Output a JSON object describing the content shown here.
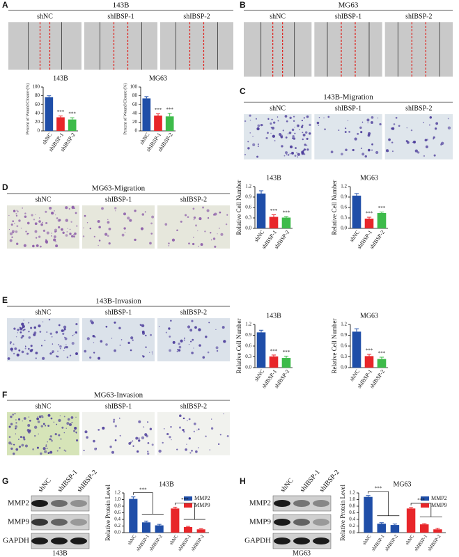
{
  "panels": {
    "letters": [
      "A",
      "B",
      "C",
      "D",
      "E",
      "F",
      "G",
      "H"
    ]
  },
  "image_panels": [
    {
      "title": "143B",
      "columns": [
        "shNC",
        "shIBSP-1",
        "shIBSP-2"
      ]
    },
    {
      "title": "MG63",
      "columns": [
        "shNC",
        "shIBSP-1",
        "shIBSP-2"
      ]
    },
    {
      "title": "143B-Migration",
      "columns": [
        "shNC",
        "shIBSP-1",
        "shIBSP-2"
      ]
    },
    {
      "title": "MG63-Migration",
      "columns": [
        "shNC",
        "shIBSP-1",
        "shIBSP-2"
      ]
    },
    {
      "title": "143B-Invasion",
      "columns": [
        "shNC",
        "shIBSP-1",
        "shIBSP-2"
      ]
    },
    {
      "title": "MG63-Invasion",
      "columns": [
        "shNC",
        "shIBSP-1",
        "shIBSP-2"
      ]
    }
  ],
  "blots": [
    {
      "lanes": [
        "shNC",
        "shIBSP-1",
        "shIBSP-2"
      ],
      "bands": [
        "MMP2",
        "MMP9",
        "GAPDH"
      ],
      "cell_line": "143B"
    },
    {
      "lanes": [
        "shNC",
        "shIBSP-1",
        "shIBSP-2"
      ],
      "bands": [
        "MMP2",
        "MMP9",
        "GAPDH"
      ],
      "cell_line": "MG63"
    }
  ],
  "chart_data": [
    {
      "type": "bar",
      "title": "143B",
      "ylabel": "Percent of Wound Closure (%)",
      "categories": [
        "shNC",
        "shIBSP-1",
        "shIBSP-2"
      ],
      "values": [
        77,
        31,
        26
      ],
      "errors": [
        3,
        3,
        4
      ],
      "significance": [
        null,
        "***",
        "***"
      ],
      "colors": [
        "#1f4ea8",
        "#e8262a",
        "#3dbb4a"
      ],
      "ylim": [
        0,
        100
      ],
      "yticks": [
        0,
        20,
        40,
        60,
        80,
        100
      ]
    },
    {
      "type": "bar",
      "title": "MG63",
      "ylabel": "Percent of Wound Closure (%)",
      "categories": [
        "shNC",
        "shIBSP-1",
        "shIBSP-2"
      ],
      "values": [
        74,
        35,
        33
      ],
      "errors": [
        4,
        4,
        7
      ],
      "significance": [
        null,
        "***",
        "***"
      ],
      "colors": [
        "#1f4ea8",
        "#e8262a",
        "#3dbb4a"
      ],
      "ylim": [
        0,
        100
      ],
      "yticks": [
        0,
        20,
        40,
        60,
        80,
        100
      ]
    },
    {
      "type": "bar",
      "title": "143B",
      "ylabel": "Relative Cell Number",
      "categories": [
        "shNC",
        "shIBSP-1",
        "shIBSP-2"
      ],
      "values": [
        1.0,
        0.33,
        0.31
      ],
      "errors": [
        0.08,
        0.06,
        0.03
      ],
      "significance": [
        null,
        "***",
        "***"
      ],
      "colors": [
        "#1f4ea8",
        "#e8262a",
        "#3dbb4a"
      ],
      "ylim": [
        0,
        1.2
      ],
      "yticks": [
        {
          "value": 0,
          "label": "0.0"
        },
        0.3,
        0.6,
        0.9,
        1.2
      ]
    },
    {
      "type": "bar",
      "title": "MG63",
      "ylabel": "Relative Cell Number",
      "categories": [
        "shNC",
        "shIBSP-1",
        "shIBSP-2"
      ],
      "values": [
        0.94,
        0.28,
        0.44
      ],
      "errors": [
        0.06,
        0.04,
        0.03
      ],
      "significance": [
        null,
        "***",
        "***"
      ],
      "colors": [
        "#1f4ea8",
        "#e8262a",
        "#3dbb4a"
      ],
      "ylim": [
        0,
        1.2
      ],
      "yticks": [
        {
          "value": 0,
          "label": "0.0"
        },
        0.3,
        0.6,
        0.9,
        1.2
      ]
    },
    {
      "type": "bar",
      "title": "143B",
      "ylabel": "Relative Cell Number",
      "categories": [
        "shNC",
        "shIBSP-1",
        "shIBSP-2"
      ],
      "values": [
        0.98,
        0.31,
        0.27
      ],
      "errors": [
        0.06,
        0.04,
        0.05
      ],
      "significance": [
        null,
        "***",
        "***"
      ],
      "colors": [
        "#1f4ea8",
        "#e8262a",
        "#3dbb4a"
      ],
      "ylim": [
        0,
        1.2
      ],
      "yticks": [
        {
          "value": 0,
          "label": "0.0"
        },
        0.3,
        0.6,
        0.9,
        1.2
      ]
    },
    {
      "type": "bar",
      "title": "MG63",
      "ylabel": "Relative Cell Number",
      "categories": [
        "shNC",
        "shIBSP-1",
        "shIBSP-2"
      ],
      "values": [
        1.0,
        0.32,
        0.24
      ],
      "errors": [
        0.08,
        0.05,
        0.05
      ],
      "significance": [
        null,
        "***",
        "***"
      ],
      "colors": [
        "#1f4ea8",
        "#e8262a",
        "#3dbb4a"
      ],
      "ylim": [
        0,
        1.2
      ],
      "yticks": [
        {
          "value": 0,
          "label": "0.0"
        },
        0.3,
        0.6,
        0.9,
        1.2
      ]
    },
    {
      "type": "grouped_bar",
      "title": "143B",
      "ylabel": "Relative Protein Level",
      "categories": [
        "shNC",
        "shIBSP-1",
        "shIBSP-2"
      ],
      "series": [
        {
          "name": "MMP2",
          "color": "#1f4ea8",
          "values": [
            1.02,
            0.31,
            0.22
          ],
          "errors": [
            0.06,
            0.04,
            0.03
          ],
          "significance": "***"
        },
        {
          "name": "MMP9",
          "color": "#e8262a",
          "values": [
            0.73,
            0.17,
            0.1
          ],
          "errors": [
            0.04,
            0.02,
            0.02
          ],
          "significance": "***"
        }
      ],
      "ylim": [
        0,
        1.2
      ],
      "yticks": [
        {
          "value": 0,
          "label": "0.0"
        },
        0.2,
        0.4,
        0.6,
        0.8,
        {
          "value": 1,
          "label": "1.0"
        },
        1.2
      ]
    },
    {
      "type": "grouped_bar",
      "title": "MG63",
      "ylabel": "Relative Protein Level",
      "categories": [
        "shNC",
        "shIBSP-1",
        "shIBSP-2"
      ],
      "series": [
        {
          "name": "MMP2",
          "color": "#1f4ea8",
          "values": [
            1.08,
            0.27,
            0.23
          ],
          "errors": [
            0.04,
            0.03,
            0.03
          ],
          "significance": "***"
        },
        {
          "name": "MMP9",
          "color": "#e8262a",
          "values": [
            0.73,
            0.25,
            0.1
          ],
          "errors": [
            0.03,
            0.02,
            0.03
          ],
          "significance": "***"
        }
      ],
      "ylim": [
        0,
        1.2
      ],
      "yticks": [
        {
          "value": 0,
          "label": "0.0"
        },
        0.2,
        0.4,
        0.6,
        0.8,
        {
          "value": 1,
          "label": "1.0"
        },
        1.2
      ]
    }
  ]
}
